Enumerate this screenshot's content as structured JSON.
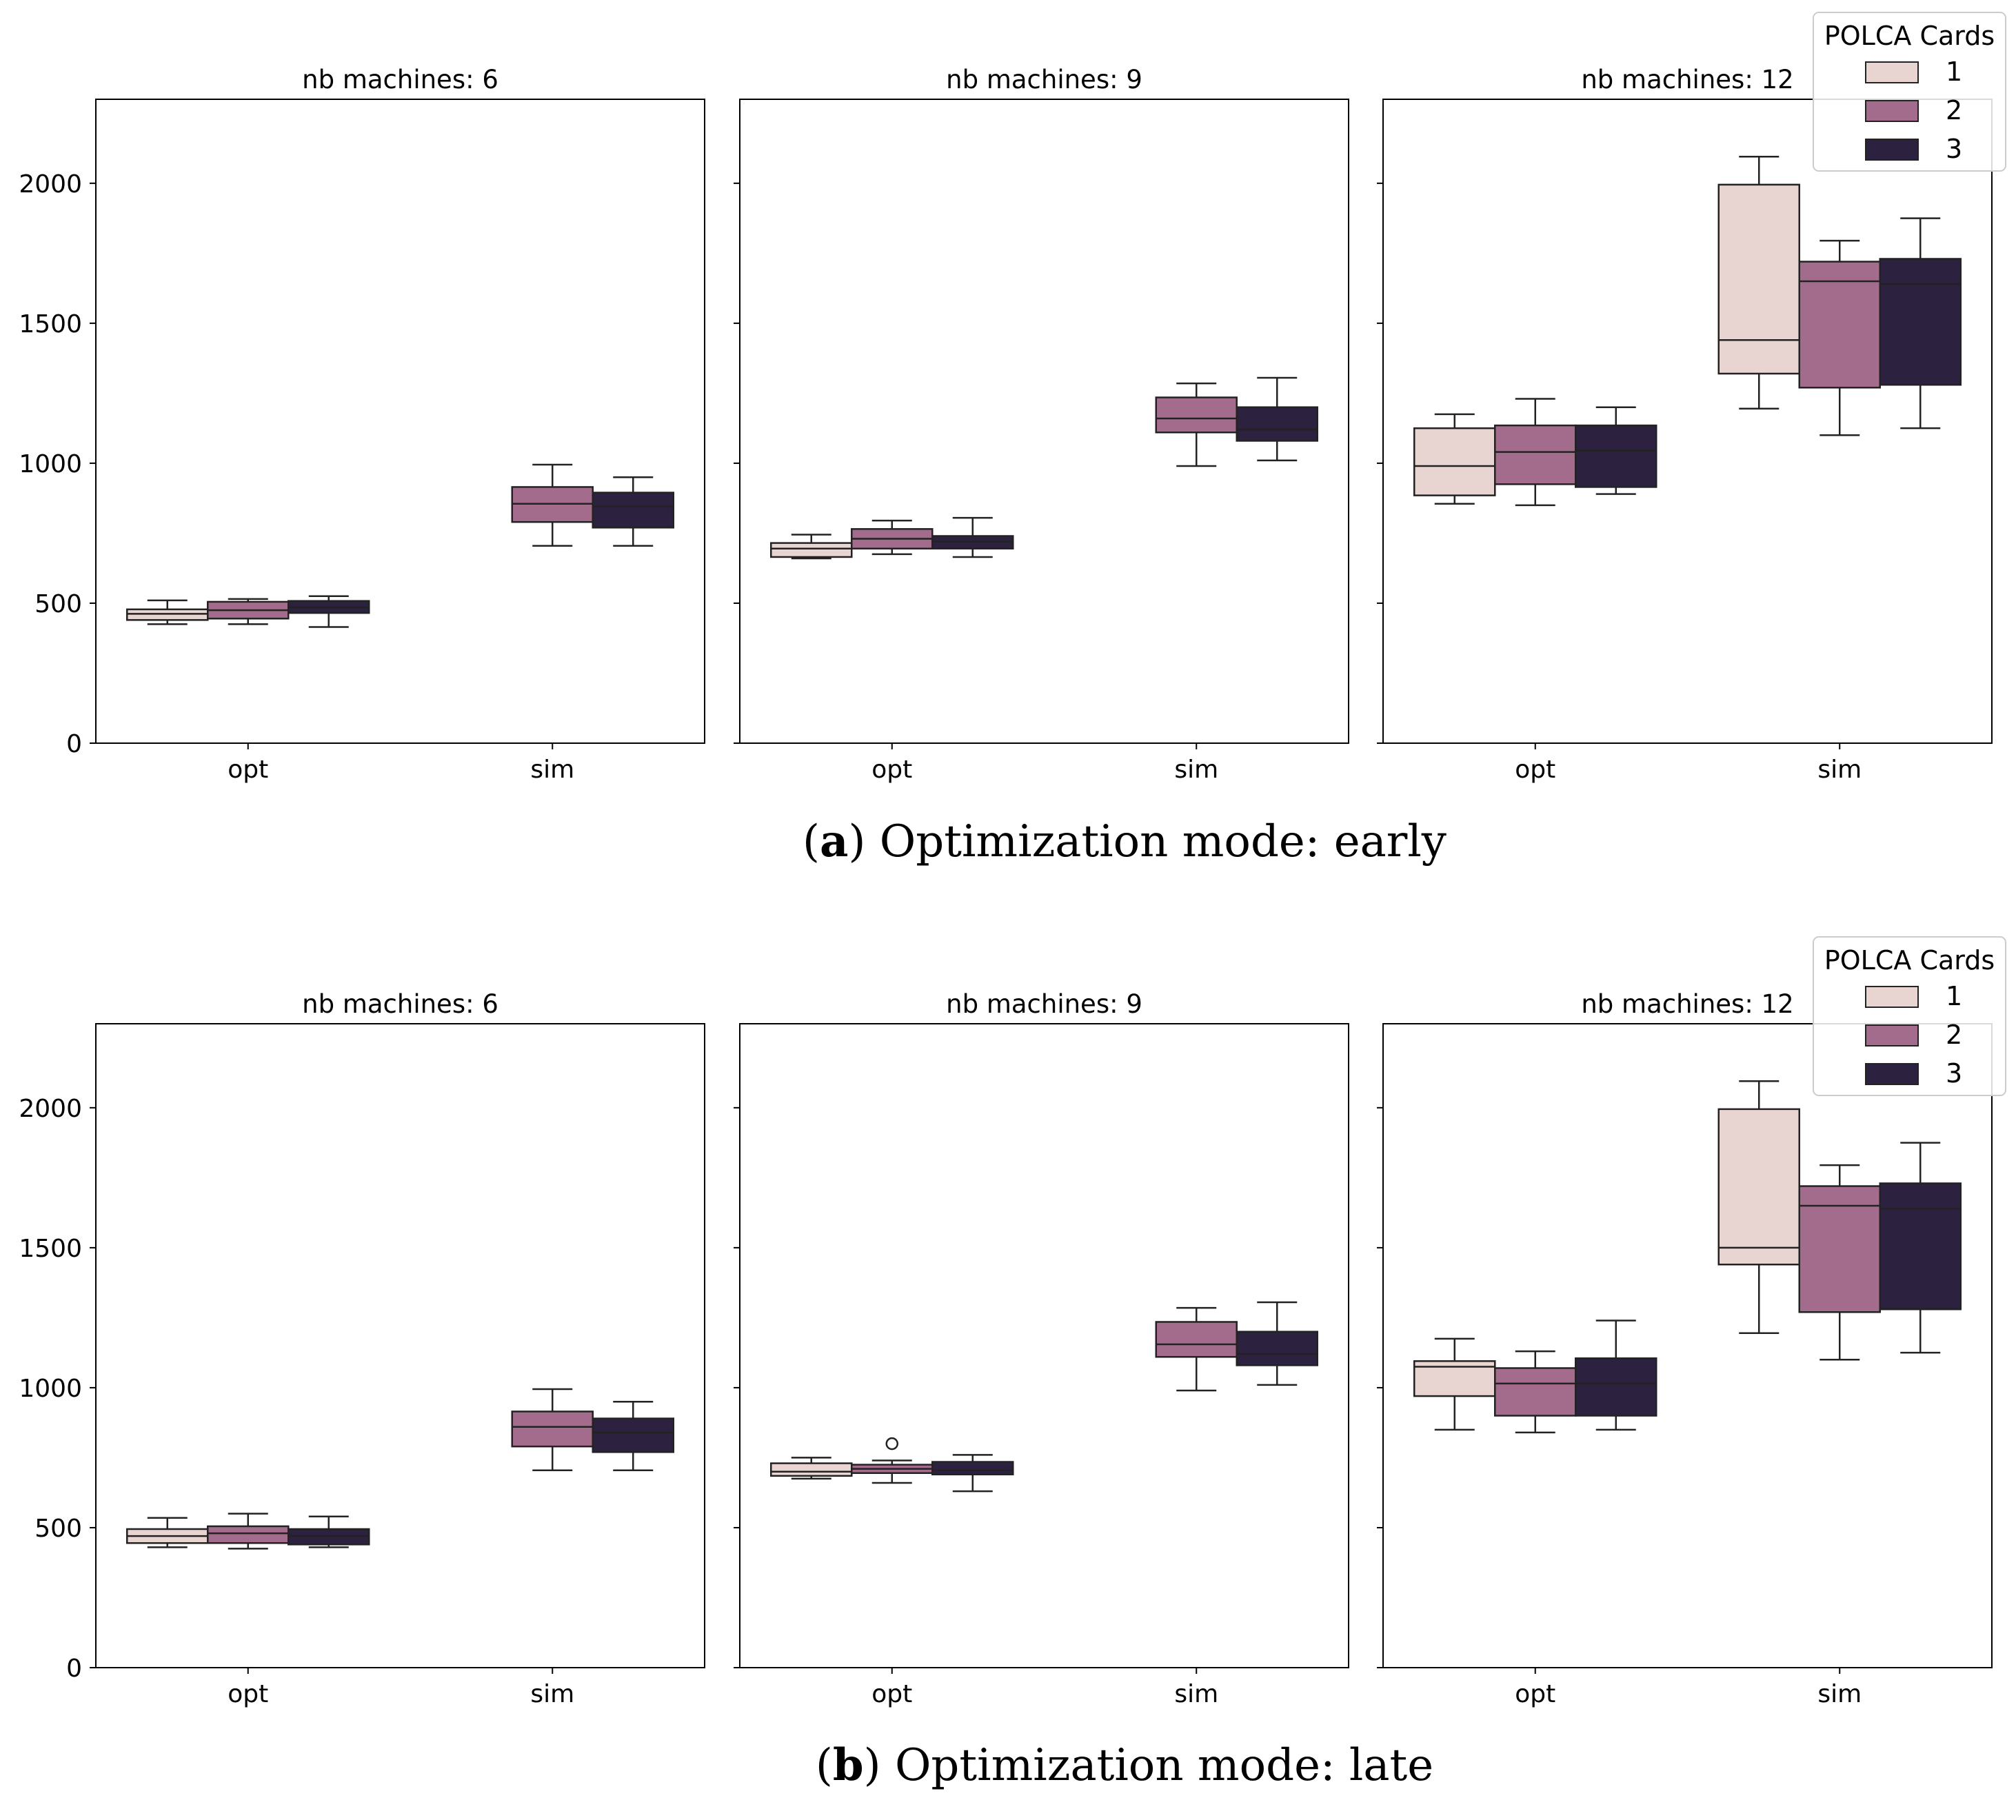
{
  "figure": {
    "legend_title": "POLCA Cards",
    "hue_labels": [
      "1",
      "2",
      "3"
    ],
    "colors": {
      "1": "#e8d4d0",
      "2": "#a46c8c",
      "3": "#2d2140"
    }
  },
  "chart_data": [
    {
      "type": "box",
      "caption": {
        "letter": "a",
        "text": "Optimization mode: early"
      },
      "ylim": [
        0,
        2300
      ],
      "yticks": [
        "0",
        "500",
        "1000",
        "1500",
        "2000"
      ],
      "categories": [
        "opt",
        "sim"
      ],
      "legend_position": "top-right",
      "panels": [
        {
          "title": "nb machines: 6",
          "boxes": [
            {
              "category": "opt",
              "hue": "1",
              "min": 425,
              "q1": 440,
              "median": 462,
              "q3": 478,
              "max": 510,
              "outliers": []
            },
            {
              "category": "opt",
              "hue": "2",
              "min": 425,
              "q1": 445,
              "median": 475,
              "q3": 505,
              "max": 515,
              "outliers": []
            },
            {
              "category": "opt",
              "hue": "3",
              "min": 415,
              "q1": 465,
              "median": 485,
              "q3": 508,
              "max": 525,
              "outliers": []
            },
            {
              "category": "sim",
              "hue": "2",
              "min": 705,
              "q1": 790,
              "median": 855,
              "q3": 915,
              "max": 995,
              "outliers": []
            },
            {
              "category": "sim",
              "hue": "3",
              "min": 705,
              "q1": 770,
              "median": 845,
              "q3": 895,
              "max": 950,
              "outliers": []
            }
          ]
        },
        {
          "title": "nb machines: 9",
          "boxes": [
            {
              "category": "opt",
              "hue": "1",
              "min": 660,
              "q1": 665,
              "median": 695,
              "q3": 715,
              "max": 745,
              "outliers": []
            },
            {
              "category": "opt",
              "hue": "2",
              "min": 675,
              "q1": 695,
              "median": 730,
              "q3": 765,
              "max": 795,
              "outliers": []
            },
            {
              "category": "opt",
              "hue": "3",
              "min": 665,
              "q1": 695,
              "median": 720,
              "q3": 740,
              "max": 805,
              "outliers": []
            },
            {
              "category": "sim",
              "hue": "2",
              "min": 990,
              "q1": 1110,
              "median": 1160,
              "q3": 1235,
              "max": 1285,
              "outliers": []
            },
            {
              "category": "sim",
              "hue": "3",
              "min": 1010,
              "q1": 1080,
              "median": 1120,
              "q3": 1200,
              "max": 1305,
              "outliers": []
            }
          ]
        },
        {
          "title": "nb machines: 12",
          "boxes": [
            {
              "category": "opt",
              "hue": "1",
              "min": 855,
              "q1": 885,
              "median": 990,
              "q3": 1125,
              "max": 1175,
              "outliers": []
            },
            {
              "category": "opt",
              "hue": "2",
              "min": 850,
              "q1": 925,
              "median": 1040,
              "q3": 1135,
              "max": 1230,
              "outliers": []
            },
            {
              "category": "opt",
              "hue": "3",
              "min": 890,
              "q1": 915,
              "median": 1045,
              "q3": 1135,
              "max": 1200,
              "outliers": []
            },
            {
              "category": "sim",
              "hue": "1",
              "min": 1195,
              "q1": 1320,
              "median": 1440,
              "q3": 1995,
              "max": 2095,
              "outliers": []
            },
            {
              "category": "sim",
              "hue": "2",
              "min": 1100,
              "q1": 1270,
              "median": 1650,
              "q3": 1720,
              "max": 1795,
              "outliers": []
            },
            {
              "category": "sim",
              "hue": "3",
              "min": 1125,
              "q1": 1280,
              "median": 1640,
              "q3": 1730,
              "max": 1875,
              "outliers": []
            }
          ]
        }
      ]
    },
    {
      "type": "box",
      "caption": {
        "letter": "b",
        "text": "Optimization mode: late"
      },
      "ylim": [
        0,
        2300
      ],
      "yticks": [
        "0",
        "500",
        "1000",
        "1500",
        "2000"
      ],
      "categories": [
        "opt",
        "sim"
      ],
      "legend_position": "top-right",
      "panels": [
        {
          "title": "nb machines: 6",
          "boxes": [
            {
              "category": "opt",
              "hue": "1",
              "min": 430,
              "q1": 445,
              "median": 470,
              "q3": 495,
              "max": 535,
              "outliers": []
            },
            {
              "category": "opt",
              "hue": "2",
              "min": 425,
              "q1": 445,
              "median": 480,
              "q3": 505,
              "max": 550,
              "outliers": []
            },
            {
              "category": "opt",
              "hue": "3",
              "min": 430,
              "q1": 440,
              "median": 470,
              "q3": 495,
              "max": 540,
              "outliers": []
            },
            {
              "category": "sim",
              "hue": "2",
              "min": 705,
              "q1": 790,
              "median": 860,
              "q3": 915,
              "max": 995,
              "outliers": []
            },
            {
              "category": "sim",
              "hue": "3",
              "min": 705,
              "q1": 770,
              "median": 840,
              "q3": 890,
              "max": 950,
              "outliers": []
            }
          ]
        },
        {
          "title": "nb machines: 9",
          "boxes": [
            {
              "category": "opt",
              "hue": "1",
              "min": 675,
              "q1": 685,
              "median": 700,
              "q3": 730,
              "max": 750,
              "outliers": []
            },
            {
              "category": "opt",
              "hue": "2",
              "min": 660,
              "q1": 695,
              "median": 710,
              "q3": 725,
              "max": 740,
              "outliers": [
                800
              ]
            },
            {
              "category": "opt",
              "hue": "3",
              "min": 630,
              "q1": 690,
              "median": 705,
              "q3": 735,
              "max": 760,
              "outliers": []
            },
            {
              "category": "sim",
              "hue": "2",
              "min": 990,
              "q1": 1110,
              "median": 1155,
              "q3": 1235,
              "max": 1285,
              "outliers": []
            },
            {
              "category": "sim",
              "hue": "3",
              "min": 1010,
              "q1": 1080,
              "median": 1120,
              "q3": 1200,
              "max": 1305,
              "outliers": []
            }
          ]
        },
        {
          "title": "nb machines: 12",
          "boxes": [
            {
              "category": "opt",
              "hue": "1",
              "min": 850,
              "q1": 970,
              "median": 1075,
              "q3": 1095,
              "max": 1175,
              "outliers": []
            },
            {
              "category": "opt",
              "hue": "2",
              "min": 840,
              "q1": 900,
              "median": 1015,
              "q3": 1070,
              "max": 1130,
              "outliers": []
            },
            {
              "category": "opt",
              "hue": "3",
              "min": 850,
              "q1": 900,
              "median": 1015,
              "q3": 1105,
              "max": 1240,
              "outliers": []
            },
            {
              "category": "sim",
              "hue": "1",
              "min": 1195,
              "q1": 1440,
              "median": 1500,
              "q3": 1995,
              "max": 2095,
              "outliers": []
            },
            {
              "category": "sim",
              "hue": "2",
              "min": 1100,
              "q1": 1270,
              "median": 1650,
              "q3": 1720,
              "max": 1795,
              "outliers": []
            },
            {
              "category": "sim",
              "hue": "3",
              "min": 1125,
              "q1": 1280,
              "median": 1640,
              "q3": 1730,
              "max": 1875,
              "outliers": []
            }
          ]
        }
      ]
    }
  ]
}
